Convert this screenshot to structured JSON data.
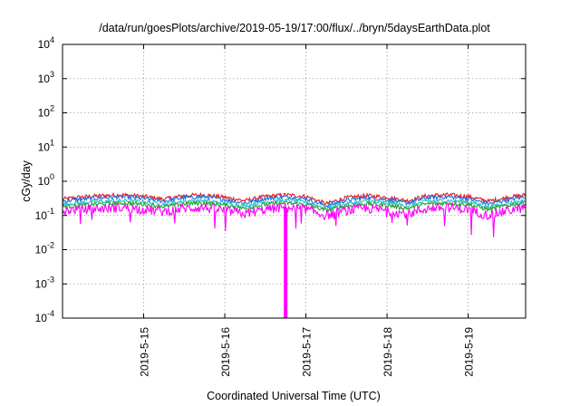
{
  "chart_data": {
    "type": "line",
    "title": "/data/run/goesPlots/archive/2019-05-19/17:00/flux/../bryn/5daysEarthData.plot",
    "xlabel": "Coordinated Universal Time (UTC)",
    "ylabel": "cGy/day",
    "yscale": "log",
    "ylim": [
      0.0001,
      10000
    ],
    "xlim": [
      "2019-05-14 00:00",
      "2019-05-19 17:00"
    ],
    "grid": true,
    "x_ticks": [
      "2019-5-15",
      "2019-5-16",
      "2019-5-17",
      "2019-5-18",
      "2019-5-19"
    ],
    "y_ticks": [
      {
        "base": "10",
        "exp": "-4"
      },
      {
        "base": "10",
        "exp": "-3"
      },
      {
        "base": "10",
        "exp": "-2"
      },
      {
        "base": "10",
        "exp": "-1"
      },
      {
        "base": "10",
        "exp": "0"
      },
      {
        "base": "10",
        "exp": "1"
      },
      {
        "base": "10",
        "exp": "2"
      },
      {
        "base": "10",
        "exp": "3"
      },
      {
        "base": "10",
        "exp": "4"
      }
    ],
    "x": [
      "2019-05-14 00:00",
      "2019-05-14 06:00",
      "2019-05-14 12:00",
      "2019-05-14 18:00",
      "2019-05-15 00:00",
      "2019-05-15 06:00",
      "2019-05-15 12:00",
      "2019-05-15 18:00",
      "2019-05-16 00:00",
      "2019-05-16 06:00",
      "2019-05-16 12:00",
      "2019-05-16 18:00",
      "2019-05-17 00:00",
      "2019-05-17 06:00",
      "2019-05-17 12:00",
      "2019-05-17 18:00",
      "2019-05-18 00:00",
      "2019-05-18 06:00",
      "2019-05-18 12:00",
      "2019-05-18 18:00",
      "2019-05-19 00:00",
      "2019-05-19 06:00",
      "2019-05-19 12:00",
      "2019-05-19 17:00"
    ],
    "series": [
      {
        "color": "#e41a1c",
        "values": [
          0.3,
          0.35,
          0.38,
          0.4,
          0.36,
          0.3,
          0.38,
          0.4,
          0.34,
          0.27,
          0.36,
          0.4,
          0.36,
          0.22,
          0.33,
          0.38,
          0.34,
          0.27,
          0.38,
          0.4,
          0.36,
          0.26,
          0.34,
          0.4
        ]
      },
      {
        "color": "#1f6fe5",
        "values": [
          0.26,
          0.3,
          0.33,
          0.35,
          0.31,
          0.26,
          0.33,
          0.35,
          0.29,
          0.23,
          0.31,
          0.35,
          0.31,
          0.19,
          0.28,
          0.33,
          0.29,
          0.23,
          0.33,
          0.35,
          0.31,
          0.22,
          0.29,
          0.35
        ]
      },
      {
        "color": "#20c6c8",
        "values": [
          0.21,
          0.24,
          0.26,
          0.27,
          0.25,
          0.21,
          0.26,
          0.27,
          0.23,
          0.19,
          0.25,
          0.27,
          0.25,
          0.16,
          0.22,
          0.26,
          0.23,
          0.19,
          0.26,
          0.27,
          0.25,
          0.18,
          0.23,
          0.27
        ]
      },
      {
        "color": "#2ca02c",
        "values": [
          0.18,
          0.2,
          0.22,
          0.23,
          0.21,
          0.18,
          0.22,
          0.23,
          0.2,
          0.16,
          0.21,
          0.23,
          0.21,
          0.14,
          0.19,
          0.22,
          0.2,
          0.16,
          0.22,
          0.23,
          0.21,
          0.15,
          0.2,
          0.23
        ]
      },
      {
        "color": "#ff00ff",
        "values": [
          0.14,
          0.15,
          0.16,
          0.17,
          0.15,
          0.13,
          0.16,
          0.17,
          0.14,
          0.11,
          0.15,
          0.17,
          0.15,
          0.1,
          0.14,
          0.16,
          0.14,
          0.11,
          0.16,
          0.17,
          0.15,
          0.1,
          0.14,
          0.17
        ]
      }
    ],
    "annotations": [
      {
        "x": "2019-05-16 18:00",
        "y_min": 0.0001,
        "series": 4,
        "note_visible": false
      }
    ]
  }
}
